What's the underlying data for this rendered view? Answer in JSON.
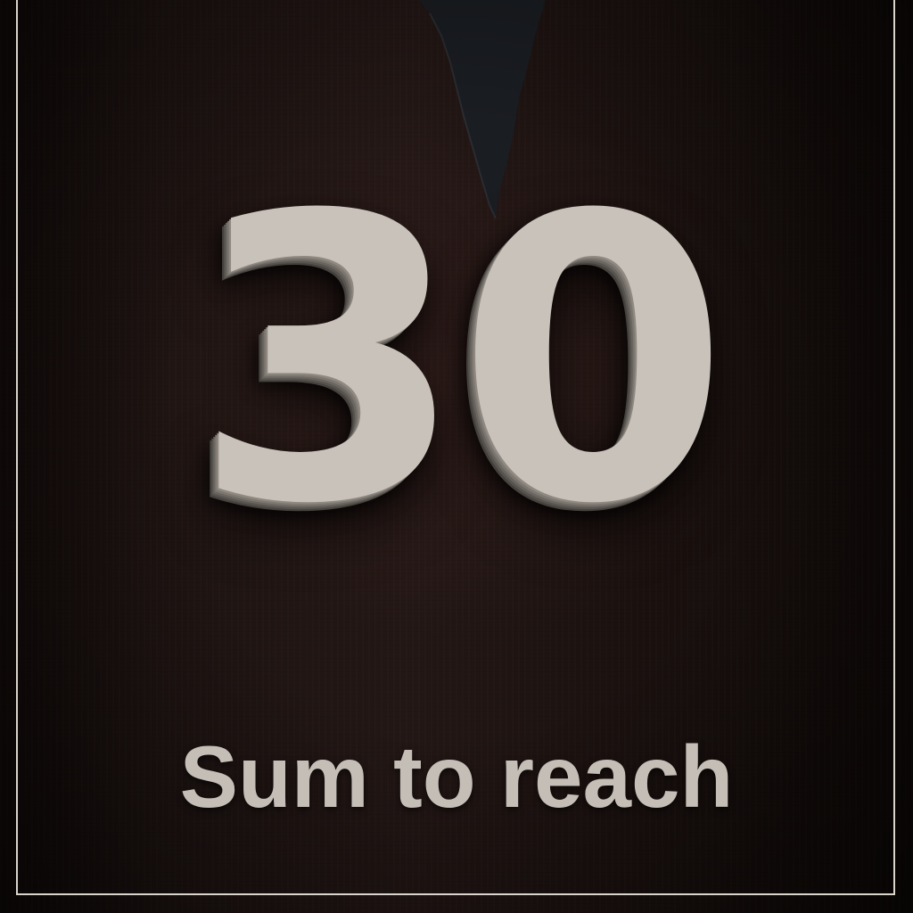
{
  "game": {
    "target_value": "30",
    "caption": "Sum to reach"
  },
  "colors": {
    "background": "#1e1412",
    "digit_face": "#c8c2ba",
    "caption_text": "#c4beb6",
    "frame_border": "#d9d4cc",
    "crack_fill": "#1a1d22"
  }
}
